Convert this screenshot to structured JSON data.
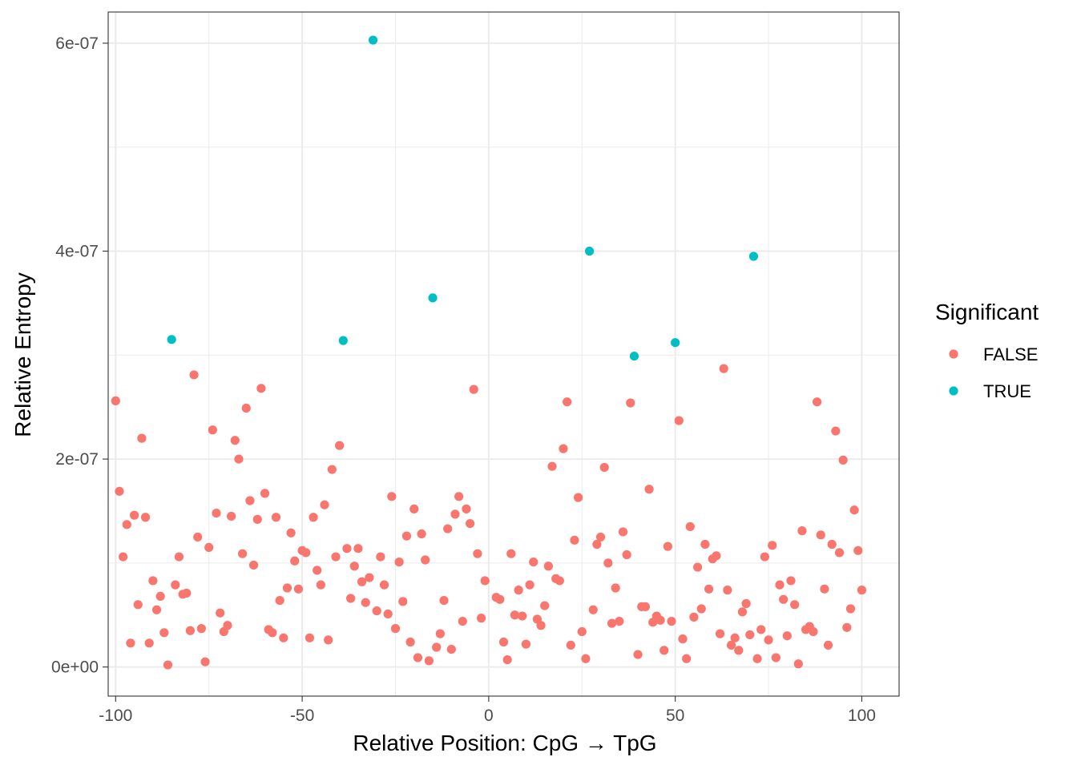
{
  "chart_data": {
    "type": "scatter",
    "title": "",
    "xlabel": "Relative Position: CpG → TpG",
    "ylabel": "Relative Entropy",
    "xlim": [
      -102,
      110
    ],
    "ylim": [
      -2.8e-08,
      6.3e-07
    ],
    "x_ticks": [
      -100,
      -50,
      0,
      50,
      100
    ],
    "x_tick_labels": [
      "-100",
      "-50",
      "0",
      "50",
      "100"
    ],
    "y_ticks": [
      0,
      2e-07,
      4e-07,
      6e-07
    ],
    "y_tick_labels": [
      "0e+00",
      "2e-07",
      "4e-07",
      "6e-07"
    ],
    "grid": true,
    "legend": {
      "title": "Significant",
      "placement": "right"
    },
    "series": [
      {
        "name": "FALSE",
        "color": "#F8766D",
        "points": [
          [
            -100,
            2.56e-07
          ],
          [
            -99,
            1.69e-07
          ],
          [
            -98,
            1.06e-07
          ],
          [
            -97,
            1.37e-07
          ],
          [
            -96,
            2.3e-08
          ],
          [
            -95,
            1.46e-07
          ],
          [
            -94,
            6e-08
          ],
          [
            -93,
            2.2e-07
          ],
          [
            -92,
            1.44e-07
          ],
          [
            -91,
            2.3e-08
          ],
          [
            -90,
            8.3e-08
          ],
          [
            -89,
            5.5e-08
          ],
          [
            -88,
            6.8e-08
          ],
          [
            -87,
            3.3e-08
          ],
          [
            -86,
            2e-09
          ],
          [
            -84,
            7.9e-08
          ],
          [
            -83,
            1.06e-07
          ],
          [
            -82,
            7e-08
          ],
          [
            -81,
            7.1e-08
          ],
          [
            -80,
            3.5e-08
          ],
          [
            -79,
            2.81e-07
          ],
          [
            -78,
            1.25e-07
          ],
          [
            -77,
            3.7e-08
          ],
          [
            -76,
            5e-09
          ],
          [
            -75,
            1.15e-07
          ],
          [
            -74,
            2.28e-07
          ],
          [
            -73,
            1.48e-07
          ],
          [
            -72,
            5.2e-08
          ],
          [
            -71,
            3.4e-08
          ],
          [
            -70,
            4e-08
          ],
          [
            -69,
            1.45e-07
          ],
          [
            -68,
            2.18e-07
          ],
          [
            -67,
            2e-07
          ],
          [
            -66,
            1.09e-07
          ],
          [
            -65,
            2.49e-07
          ],
          [
            -64,
            1.6e-07
          ],
          [
            -63,
            9.8e-08
          ],
          [
            -62,
            1.42e-07
          ],
          [
            -61,
            2.68e-07
          ],
          [
            -60,
            1.67e-07
          ],
          [
            -59,
            3.6e-08
          ],
          [
            -58,
            3.3e-08
          ],
          [
            -57,
            1.44e-07
          ],
          [
            -56,
            6.4e-08
          ],
          [
            -55,
            2.8e-08
          ],
          [
            -54,
            7.6e-08
          ],
          [
            -53,
            1.29e-07
          ],
          [
            -52,
            1.02e-07
          ],
          [
            -51,
            7.5e-08
          ],
          [
            -50,
            1.12e-07
          ],
          [
            -49,
            1.1e-07
          ],
          [
            -48,
            2.8e-08
          ],
          [
            -47,
            1.44e-07
          ],
          [
            -46,
            9.3e-08
          ],
          [
            -45,
            7.9e-08
          ],
          [
            -44,
            1.56e-07
          ],
          [
            -43,
            2.6e-08
          ],
          [
            -42,
            1.9e-07
          ],
          [
            -41,
            1.06e-07
          ],
          [
            -40,
            2.13e-07
          ],
          [
            -38,
            1.14e-07
          ],
          [
            -37,
            6.6e-08
          ],
          [
            -36,
            9.7e-08
          ],
          [
            -35,
            1.14e-07
          ],
          [
            -34,
            8.2e-08
          ],
          [
            -33,
            6.2e-08
          ],
          [
            -32,
            8.6e-08
          ],
          [
            -30,
            5.4e-08
          ],
          [
            -29,
            1.06e-07
          ],
          [
            -28,
            7.9e-08
          ],
          [
            -27,
            5.1e-08
          ],
          [
            -26,
            1.64e-07
          ],
          [
            -25,
            3.7e-08
          ],
          [
            -24,
            1.01e-07
          ],
          [
            -23,
            6.3e-08
          ],
          [
            -22,
            1.26e-07
          ],
          [
            -21,
            2.4e-08
          ],
          [
            -20,
            1.52e-07
          ],
          [
            -19,
            9e-09
          ],
          [
            -18,
            1.28e-07
          ],
          [
            -17,
            1.03e-07
          ],
          [
            -16,
            6e-09
          ],
          [
            -14,
            1.9e-08
          ],
          [
            -13,
            3.2e-08
          ],
          [
            -12,
            6.4e-08
          ],
          [
            -11,
            1.33e-07
          ],
          [
            -10,
            1.7e-08
          ],
          [
            -9,
            1.47e-07
          ],
          [
            -8,
            1.64e-07
          ],
          [
            -7,
            4.4e-08
          ],
          [
            -6,
            1.52e-07
          ],
          [
            -5,
            1.38e-07
          ],
          [
            -4,
            2.67e-07
          ],
          [
            -3,
            1.09e-07
          ],
          [
            -2,
            4.7e-08
          ],
          [
            -1,
            8.3e-08
          ],
          [
            2,
            6.7e-08
          ],
          [
            3,
            6.5e-08
          ],
          [
            4,
            2.4e-08
          ],
          [
            5,
            7e-09
          ],
          [
            6,
            1.09e-07
          ],
          [
            7,
            5e-08
          ],
          [
            8,
            7.4e-08
          ],
          [
            9,
            4.9e-08
          ],
          [
            10,
            2.2e-08
          ],
          [
            11,
            7.9e-08
          ],
          [
            12,
            1.01e-07
          ],
          [
            13,
            4.6e-08
          ],
          [
            14,
            4e-08
          ],
          [
            15,
            5.9e-08
          ],
          [
            16,
            9.7e-08
          ],
          [
            17,
            1.93e-07
          ],
          [
            18,
            8.5e-08
          ],
          [
            19,
            8.3e-08
          ],
          [
            20,
            2.1e-07
          ],
          [
            21,
            2.55e-07
          ],
          [
            22,
            2.1e-08
          ],
          [
            23,
            1.22e-07
          ],
          [
            24,
            1.63e-07
          ],
          [
            25,
            3.4e-08
          ],
          [
            26,
            8e-09
          ],
          [
            28,
            5.5e-08
          ],
          [
            29,
            1.18e-07
          ],
          [
            30,
            1.25e-07
          ],
          [
            31,
            1.92e-07
          ],
          [
            32,
            1e-07
          ],
          [
            33,
            4.2e-08
          ],
          [
            34,
            7.6e-08
          ],
          [
            35,
            4.4e-08
          ],
          [
            36,
            1.3e-07
          ],
          [
            37,
            1.08e-07
          ],
          [
            38,
            2.54e-07
          ],
          [
            40,
            1.2e-08
          ],
          [
            41,
            5.8e-08
          ],
          [
            42,
            5.8e-08
          ],
          [
            43,
            1.71e-07
          ],
          [
            44,
            4.3e-08
          ],
          [
            45,
            4.9e-08
          ],
          [
            46,
            4.5e-08
          ],
          [
            47,
            1.6e-08
          ],
          [
            48,
            1.16e-07
          ],
          [
            49,
            4.4e-08
          ],
          [
            51,
            2.37e-07
          ],
          [
            52,
            2.7e-08
          ],
          [
            53,
            8e-09
          ],
          [
            54,
            1.35e-07
          ],
          [
            55,
            4.8e-08
          ],
          [
            56,
            9.6e-08
          ],
          [
            57,
            5.6e-08
          ],
          [
            58,
            1.18e-07
          ],
          [
            59,
            7.5e-08
          ],
          [
            60,
            1.04e-07
          ],
          [
            61,
            1.07e-07
          ],
          [
            62,
            3.2e-08
          ],
          [
            63,
            2.87e-07
          ],
          [
            64,
            7.4e-08
          ],
          [
            65,
            2.1e-08
          ],
          [
            66,
            2.8e-08
          ],
          [
            67,
            1.6e-08
          ],
          [
            68,
            5.3e-08
          ],
          [
            69,
            6.1e-08
          ],
          [
            70,
            3.1e-08
          ],
          [
            72,
            8e-09
          ],
          [
            73,
            3.6e-08
          ],
          [
            74,
            1.06e-07
          ],
          [
            75,
            2.6e-08
          ],
          [
            76,
            1.17e-07
          ],
          [
            77,
            9e-09
          ],
          [
            78,
            7.9e-08
          ],
          [
            79,
            6.5e-08
          ],
          [
            80,
            3e-08
          ],
          [
            81,
            8.3e-08
          ],
          [
            82,
            6e-08
          ],
          [
            83,
            3e-09
          ],
          [
            84,
            1.31e-07
          ],
          [
            85,
            3.6e-08
          ],
          [
            86,
            3.9e-08
          ],
          [
            87,
            3.4e-08
          ],
          [
            88,
            2.55e-07
          ],
          [
            89,
            1.27e-07
          ],
          [
            90,
            7.5e-08
          ],
          [
            91,
            2.1e-08
          ],
          [
            92,
            1.18e-07
          ],
          [
            93,
            2.27e-07
          ],
          [
            94,
            1.1e-07
          ],
          [
            95,
            1.99e-07
          ],
          [
            96,
            3.8e-08
          ],
          [
            97,
            5.6e-08
          ],
          [
            98,
            1.51e-07
          ],
          [
            99,
            1.12e-07
          ],
          [
            100,
            7.4e-08
          ]
        ]
      },
      {
        "name": "TRUE",
        "color": "#00BFC4",
        "points": [
          [
            -85,
            3.15e-07
          ],
          [
            -39,
            3.14e-07
          ],
          [
            -31,
            6.03e-07
          ],
          [
            -15,
            3.55e-07
          ],
          [
            27,
            4e-07
          ],
          [
            39,
            2.99e-07
          ],
          [
            50,
            3.12e-07
          ],
          [
            71,
            3.95e-07
          ]
        ]
      }
    ]
  }
}
